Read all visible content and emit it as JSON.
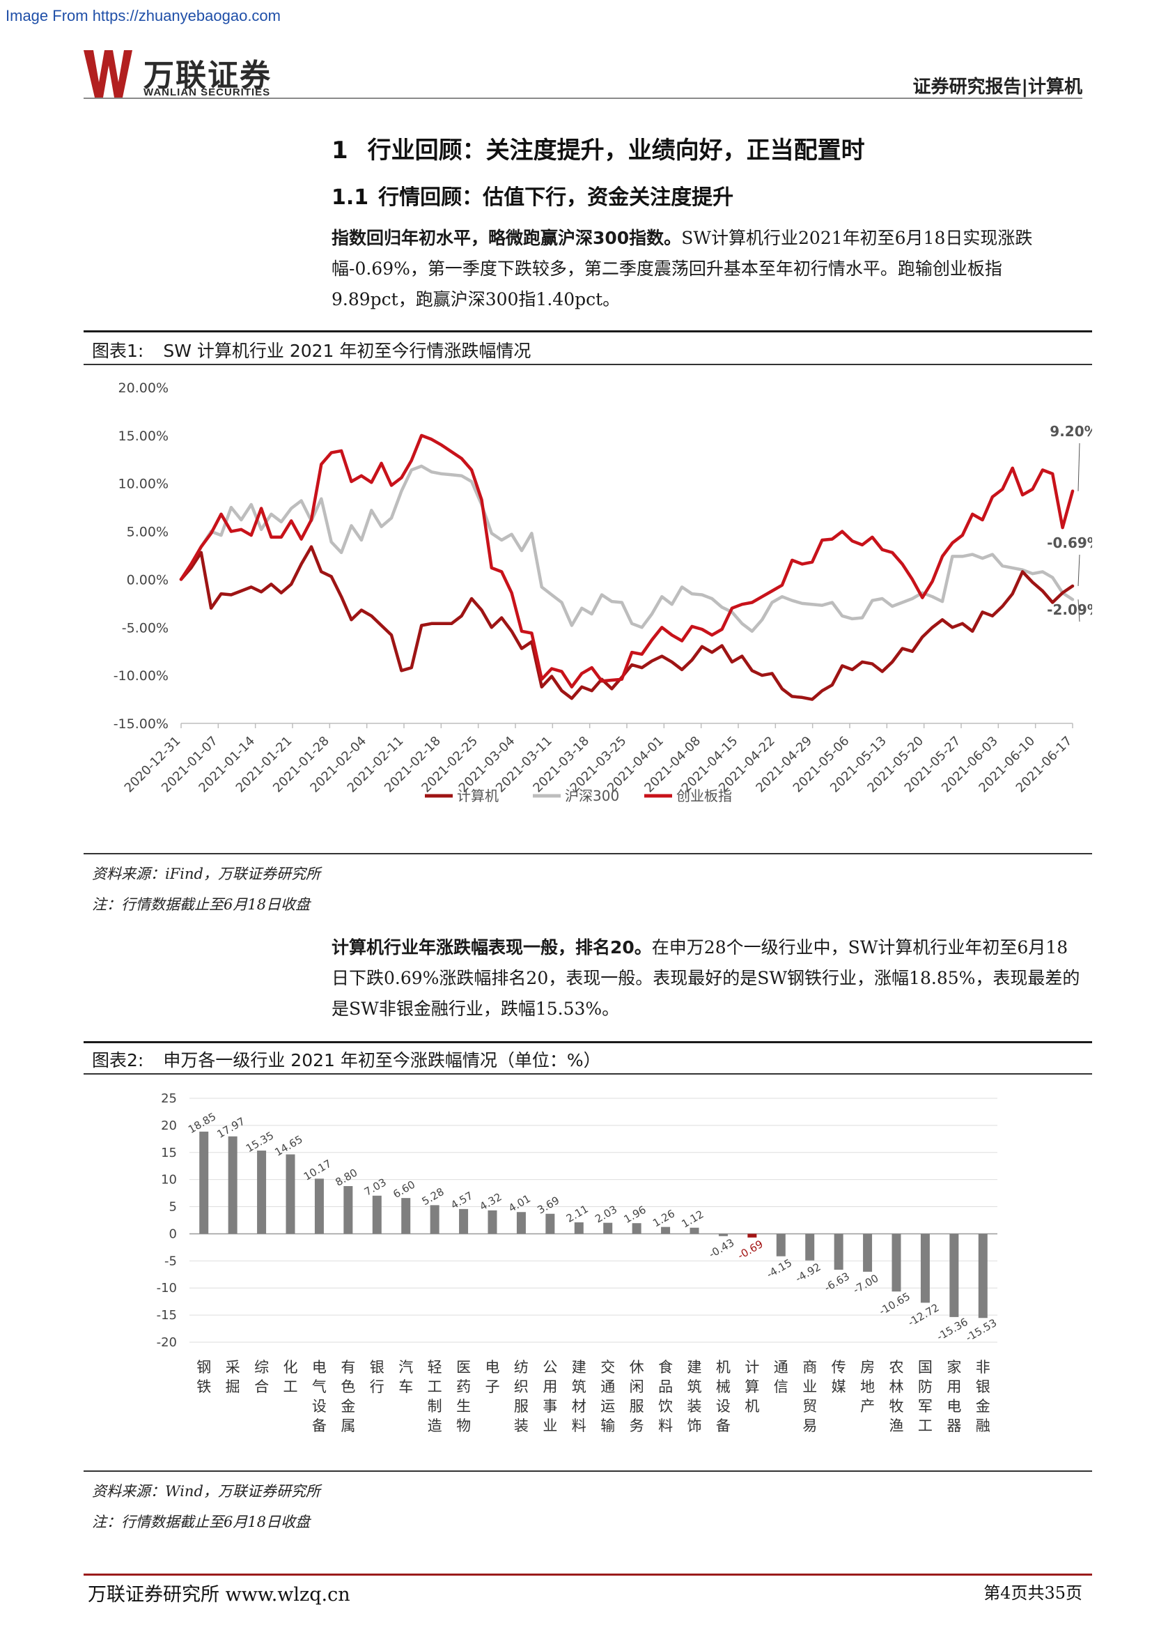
{
  "watermark": "Image From https://zhuanyebaogao.com",
  "brand": {
    "name_cn": "万联证券",
    "name_en": "WANLIAN SECURITIES",
    "logo_color": "#b21f1f"
  },
  "header": {
    "report_tag": "证券研究报告|计算机"
  },
  "section1": {
    "num": "1",
    "title": "行业回顾：关注度提升，业绩向好，正当配置时"
  },
  "section11": {
    "num": "1.1",
    "title": "行情回顾：估值下行，资金关注度提升"
  },
  "para1": {
    "bold": "指数回归年初水平，略微跑赢沪深300指数。",
    "text": "SW计算机行业2021年初至6月18日实现涨跌幅-0.69%，第一季度下跌较多，第二季度震荡回升基本至年初行情水平。跑输创业板指9.89pct，跑赢沪深300指1.40pct。"
  },
  "fig1": {
    "label": "图表1:",
    "title": "SW 计算机行业 2021 年初至今行情涨跌幅情况",
    "source": "资料来源：iFind，万联证券研究所",
    "note": "注：行情数据截止至6月18日收盘"
  },
  "para2": {
    "bold": "计算机行业年涨跌幅表现一般，排名20。",
    "text": "在申万28个一级行业中，SW计算机行业年初至6月18日下跌0.69%涨跌幅排名20，表现一般。表现最好的是SW钢铁行业，涨幅18.85%，表现最差的是SW非银金融行业，跌幅15.53%。"
  },
  "fig2": {
    "label": "图表2:",
    "title": "申万各一级行业 2021 年初至今涨跌幅情况（单位：%）",
    "source": "资料来源：Wind，万联证券研究所",
    "note": "注：行情数据截止至6月18日收盘"
  },
  "footer": {
    "left": "万联证券研究所 www.wlzq.cn",
    "right": "第4页共35页"
  },
  "chart_data": [
    {
      "type": "line",
      "ylim": [
        -15,
        20
      ],
      "y_ticks": [
        "20.00%",
        "15.00%",
        "10.00%",
        "5.00%",
        "0.00%",
        "-5.00%",
        "-10.00%",
        "-15.00%"
      ],
      "x_ticks": [
        "2020-12-31",
        "2021-01-07",
        "2021-01-14",
        "2021-01-21",
        "2021-01-28",
        "2021-02-04",
        "2021-02-11",
        "2021-02-18",
        "2021-02-25",
        "2021-03-04",
        "2021-03-11",
        "2021-03-18",
        "2021-03-25",
        "2021-04-01",
        "2021-04-08",
        "2021-04-15",
        "2021-04-22",
        "2021-04-29",
        "2021-05-06",
        "2021-05-13",
        "2021-05-20",
        "2021-05-27",
        "2021-06-03",
        "2021-06-10",
        "2021-06-17"
      ],
      "end_labels": [
        "9.20%",
        "-0.69%",
        "-2.09%"
      ],
      "series": [
        {
          "name": "计算机",
          "color": "#9e1414",
          "values": [
            0,
            1.2,
            2.8,
            -3.0,
            -1.5,
            -1.6,
            -1.2,
            -0.8,
            -1.3,
            -0.5,
            -1.4,
            -0.5,
            1.6,
            3.4,
            0.8,
            0.3,
            -1.8,
            -4.2,
            -3.2,
            -3.8,
            -4.8,
            -5.8,
            -9.5,
            -9.2,
            -4.8,
            -4.6,
            -4.6,
            -4.6,
            -3.8,
            -2.0,
            -3.2,
            -5.0,
            -4.0,
            -5.4,
            -7.2,
            -6.5,
            -11.2,
            -10.1,
            -11.6,
            -12.4,
            -11.2,
            -11.6,
            -10.4,
            -11.4,
            -10.2,
            -8.9,
            -9.2,
            -8.5,
            -8.0,
            -8.6,
            -9.4,
            -8.4,
            -7.0,
            -7.6,
            -6.9,
            -8.6,
            -8.0,
            -9.5,
            -10.0,
            -9.8,
            -11.4,
            -12.2,
            -12.3,
            -12.5,
            -11.6,
            -11.0,
            -9.0,
            -9.4,
            -8.6,
            -8.8,
            -9.6,
            -8.6,
            -7.2,
            -7.5,
            -6.0,
            -5.0,
            -4.2,
            -5.0,
            -4.6,
            -5.4,
            -3.4,
            -3.8,
            -2.8,
            -1.5,
            0.8,
            -0.3,
            -1.2,
            -2.4,
            -1.4,
            -0.69
          ]
        },
        {
          "name": "沪深300",
          "color": "#bdbdbd",
          "values": [
            0,
            1.5,
            3.4,
            5.0,
            4.6,
            7.5,
            6.2,
            7.8,
            5.2,
            6.8,
            6.0,
            7.4,
            8.2,
            6.1,
            8.4,
            3.9,
            2.8,
            5.6,
            4.1,
            7.2,
            5.5,
            6.4,
            9.2,
            11.4,
            11.8,
            11.2,
            11.0,
            10.9,
            10.8,
            10.2,
            7.8,
            4.8,
            4.1,
            4.7,
            3.0,
            4.8,
            -0.8,
            -1.6,
            -2.4,
            -4.8,
            -3.0,
            -3.6,
            -1.6,
            -2.3,
            -2.4,
            -4.6,
            -5.0,
            -3.6,
            -1.8,
            -2.6,
            -0.8,
            -1.5,
            -1.6,
            -2.0,
            -2.9,
            -3.4,
            -4.6,
            -5.4,
            -4.2,
            -2.4,
            -1.8,
            -2.2,
            -2.5,
            -2.6,
            -2.7,
            -2.4,
            -3.8,
            -4.1,
            -4.0,
            -2.2,
            -2.0,
            -2.8,
            -2.4,
            -2.0,
            -1.4,
            -1.8,
            -2.3,
            2.4,
            2.4,
            2.6,
            2.2,
            2.6,
            1.4,
            1.2,
            1.0,
            0.6,
            0.8,
            0.2,
            -1.4,
            -2.09
          ]
        },
        {
          "name": "创业板指",
          "color": "#c8121a",
          "values": [
            0,
            1.6,
            3.4,
            4.8,
            6.8,
            5.0,
            5.2,
            4.6,
            7.4,
            4.4,
            4.4,
            6.1,
            4.2,
            6.2,
            12.0,
            13.2,
            13.4,
            10.2,
            10.8,
            10.1,
            12.1,
            9.8,
            10.6,
            12.4,
            15.0,
            14.6,
            14.0,
            13.3,
            12.6,
            11.4,
            8.3,
            1.2,
            0.8,
            -1.4,
            -5.4,
            -5.6,
            -10.4,
            -9.3,
            -9.6,
            -11.2,
            -9.8,
            -9.2,
            -10.6,
            -10.5,
            -10.4,
            -7.6,
            -7.8,
            -6.3,
            -5.0,
            -5.8,
            -6.4,
            -4.9,
            -5.2,
            -5.8,
            -5.2,
            -3.0,
            -2.6,
            -2.4,
            -1.8,
            -1.2,
            -0.6,
            2.0,
            1.6,
            1.8,
            4.1,
            4.2,
            5.0,
            4.0,
            3.6,
            4.4,
            3.1,
            2.8,
            1.6,
            0.0,
            -1.9,
            -0.2,
            2.4,
            3.8,
            4.6,
            6.8,
            6.2,
            8.6,
            9.4,
            11.6,
            8.8,
            9.4,
            11.4,
            11.0,
            5.4,
            9.2
          ]
        }
      ],
      "legend_position": "bottom"
    },
    {
      "type": "bar",
      "ylim": [
        -20,
        25
      ],
      "y_ticks": [
        25,
        20,
        15,
        10,
        5,
        0,
        -5,
        -10,
        -15,
        -20
      ],
      "bar_color": "#7f7f7f",
      "highlight_color": "#a31515",
      "highlight_category": "计算机",
      "categories": [
        "钢铁",
        "采掘",
        "综合",
        "化工",
        "电气设备",
        "有色金属",
        "银行",
        "汽车",
        "轻工制造",
        "医药生物",
        "电子",
        "纺织服装",
        "公用事业",
        "建筑材料",
        "交通运输",
        "休闲服务",
        "食品饮料",
        "建筑装饰",
        "机械设备",
        "计算机",
        "通信",
        "商业贸易",
        "传媒",
        "房地产",
        "农林牧渔",
        "国防军工",
        "家用电器",
        "非银金融"
      ],
      "values": [
        18.85,
        17.97,
        15.35,
        14.65,
        10.17,
        8.8,
        7.03,
        6.6,
        5.28,
        4.57,
        4.32,
        4.01,
        3.69,
        2.11,
        2.03,
        1.96,
        1.26,
        1.12,
        -0.43,
        -0.69,
        -4.15,
        -4.92,
        -6.63,
        -7.0,
        -10.65,
        -12.72,
        -15.36,
        -15.53
      ],
      "labels": [
        "18.85",
        "17.97",
        "15.35",
        "14.65",
        "10.17",
        "8.80",
        "7.03",
        "6.60",
        "5.28",
        "4.57",
        "4.32",
        "4.01",
        "3.69",
        "2.11",
        "2.03",
        "1.96",
        "1.26",
        "1.12",
        "-0.43",
        "-0.69",
        "-4.15",
        "-4.92",
        "-6.63",
        "-7.00",
        "-10.65",
        "-12.72",
        "-15.36",
        "-15.53"
      ]
    }
  ]
}
